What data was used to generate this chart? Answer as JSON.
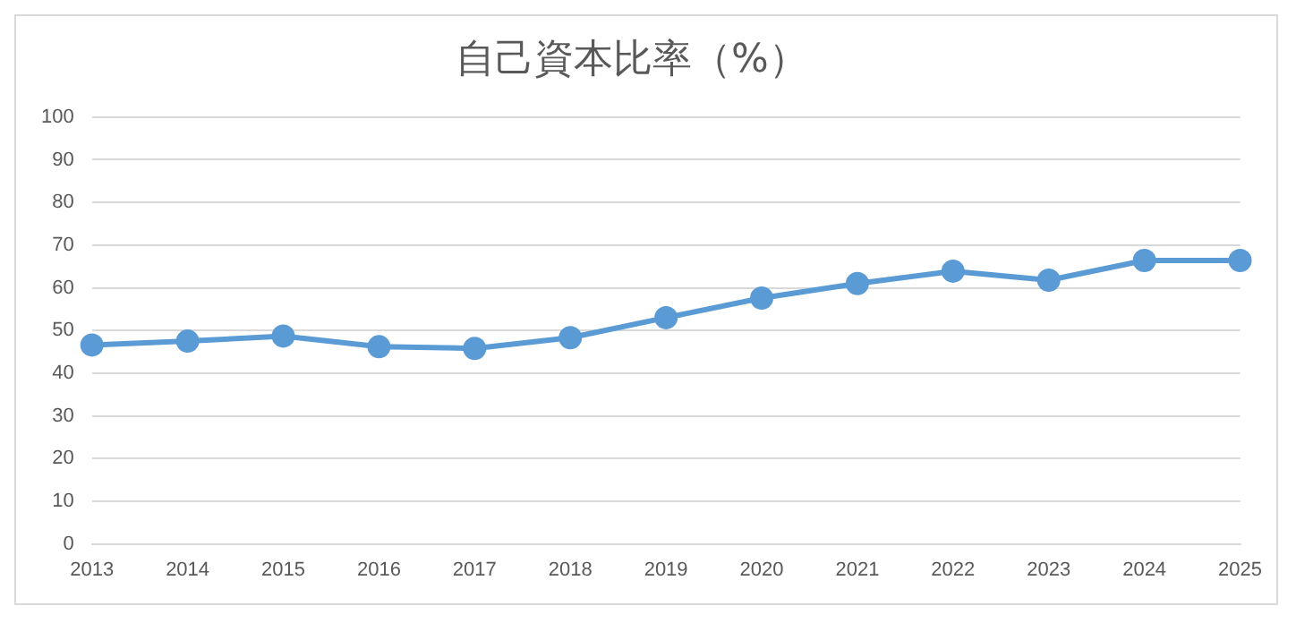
{
  "chart_data": {
    "type": "line",
    "title": "自己資本比率（%）",
    "categories": [
      "2013",
      "2014",
      "2015",
      "2016",
      "2017",
      "2018",
      "2019",
      "2020",
      "2021",
      "2022",
      "2023",
      "2024",
      "2025"
    ],
    "series": [
      {
        "color": "#5b9bd5",
        "values": [
          46.6,
          47.5,
          48.7,
          46.2,
          45.8,
          48.3,
          53.0,
          57.6,
          61.0,
          63.9,
          61.8,
          66.4,
          66.4
        ]
      }
    ],
    "ylim": [
      0,
      100
    ],
    "yticks": [
      0,
      10,
      20,
      30,
      40,
      50,
      60,
      70,
      80,
      90,
      100
    ],
    "grid": "y",
    "legend": false,
    "marker": "circle",
    "line_style": "solid"
  }
}
